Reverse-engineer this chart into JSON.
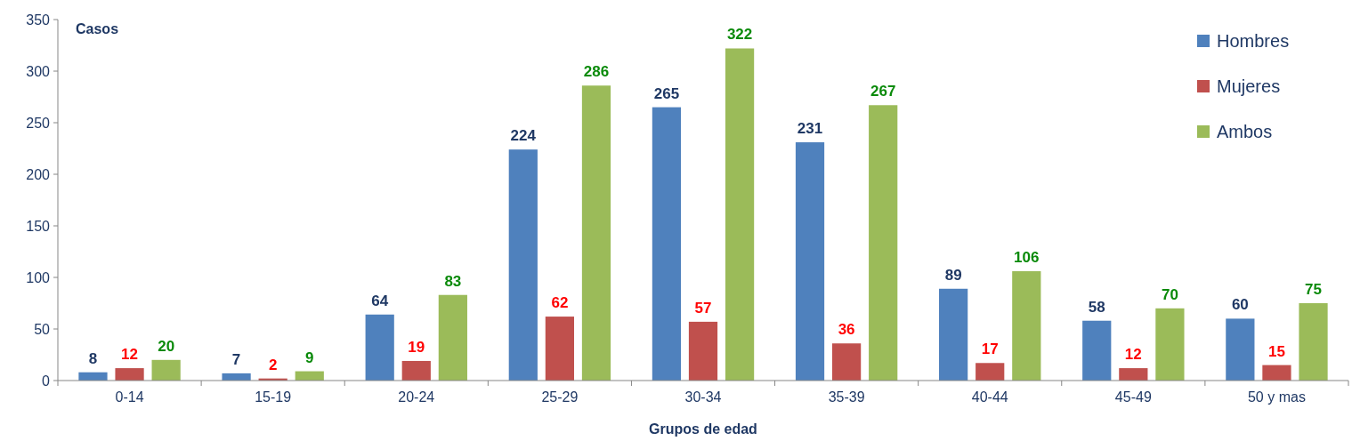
{
  "chart_data": {
    "type": "bar",
    "ylabel": "Casos",
    "xlabel": "Grupos de edad",
    "categories": [
      "0-14",
      "15-19",
      "20-24",
      "25-29",
      "30-34",
      "35-39",
      "40-44",
      "45-49",
      "50 y mas"
    ],
    "series": [
      {
        "name": "Hombres",
        "color": "#4f81bd",
        "values": [
          8,
          7,
          64,
          224,
          265,
          231,
          89,
          58,
          60
        ]
      },
      {
        "name": "Mujeres",
        "color": "#c0504d",
        "values": [
          12,
          2,
          19,
          62,
          57,
          36,
          17,
          12,
          15
        ]
      },
      {
        "name": "Ambos",
        "color": "#9bbb59",
        "values": [
          20,
          9,
          83,
          286,
          322,
          267,
          106,
          70,
          75
        ]
      }
    ],
    "ylim": [
      0,
      350
    ],
    "yticks": [
      0,
      50,
      100,
      150,
      200,
      250,
      300,
      350
    ],
    "data_labels": true,
    "legend": "top right",
    "grid": false
  }
}
